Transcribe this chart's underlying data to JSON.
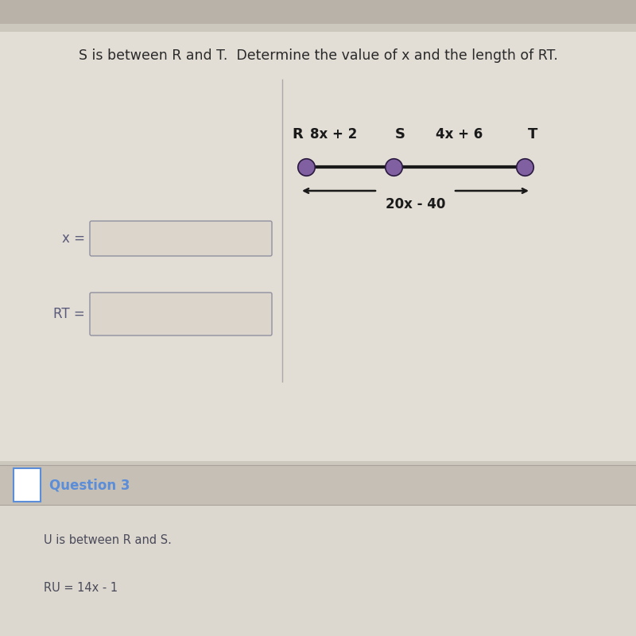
{
  "title": "S is between R and T.  Determine the value of x and the length of RT.",
  "title_fontsize": 12.5,
  "title_color": "#2a2a2a",
  "bg_color": "#cdc8be",
  "panel_color": "#e2ddd5",
  "panel2_color": "#ddd8cf",
  "question3_bg": "#c5bfb5",
  "question3_label": "Question 3",
  "q3_color": "#5b8dd9",
  "below_text": "U is between R and S.",
  "below_text2": "RU = 14x - 1",
  "segment_label_RS": "8x + 2",
  "segment_label_ST": "4x + 6",
  "segment_label_RT": "20x - 40",
  "point_R": "R",
  "point_S": "S",
  "point_T": "T",
  "x_label": "x =",
  "rt_label": "RT =",
  "line_color": "#1a1a1a",
  "dot_fill": "#8060a0",
  "dot_edge": "#2a1a40",
  "input_box_color": "#dbd5cc",
  "input_box_border": "#9090a0",
  "divider_color": "#aaaaaa",
  "top_bar_color": "#b8b2a8"
}
